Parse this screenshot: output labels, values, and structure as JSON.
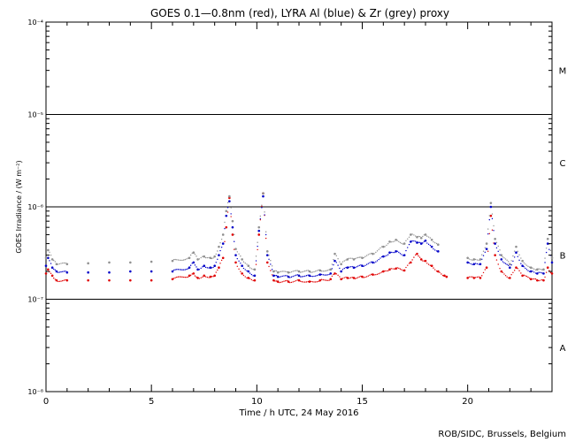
{
  "chart_data": {
    "type": "scatter",
    "title": "GOES 0.1—0.8nm (red), LYRA Al (blue) & Zr (grey) proxy",
    "xlabel": "Time / h UTC, 24 May 2016",
    "ylabel": "GOES Irradiance / (W m⁻²)",
    "xlim": [
      0,
      24
    ],
    "ylim": [
      1e-08,
      0.0001
    ],
    "yscale": "log",
    "x_ticks": [
      0,
      5,
      10,
      15,
      20
    ],
    "y_tick_labels": [
      {
        "value": 1e-08,
        "label": "10⁻⁸"
      },
      {
        "value": 1e-07,
        "label": "10⁻⁷"
      },
      {
        "value": 1e-06,
        "label": "10⁻⁶"
      },
      {
        "value": 1e-05,
        "label": "10⁻⁵"
      },
      {
        "value": 0.0001,
        "label": "10⁻⁴"
      }
    ],
    "flare_classes": [
      {
        "label": "A",
        "value": 3e-08
      },
      {
        "label": "B",
        "value": 3e-07
      },
      {
        "label": "C",
        "value": 3e-06
      },
      {
        "label": "M",
        "value": 3e-05
      }
    ],
    "threshold_lines": [
      1e-07,
      1e-06,
      1e-05
    ],
    "credit": "ROB/SIDC, Brussels, Belgium",
    "series": [
      {
        "name": "GOES 0.1–0.8nm",
        "color": "#e00000",
        "x": [
          0.0,
          0.1,
          0.3,
          0.5,
          1.0,
          2.0,
          3.0,
          4.0,
          5.0,
          6.0,
          6.8,
          7.0,
          7.2,
          7.5,
          7.8,
          8.0,
          8.2,
          8.4,
          8.55,
          8.7,
          8.85,
          9.0,
          9.3,
          9.6,
          9.9,
          10.1,
          10.3,
          10.5,
          10.8,
          11.0,
          11.5,
          12.0,
          12.5,
          13.0,
          13.5,
          13.7,
          14.0,
          14.3,
          14.6,
          15.0,
          15.5,
          16.0,
          16.3,
          16.6,
          17.0,
          17.3,
          17.6,
          17.8,
          18.0,
          18.3,
          18.6,
          18.9,
          19.0,
          20.0,
          20.3,
          20.6,
          20.9,
          21.1,
          21.3,
          21.6,
          22.0,
          22.3,
          22.6,
          23.0,
          23.3,
          23.6,
          23.8,
          24.0
        ],
        "y": [
          1.9e-07,
          2.1e-07,
          1.8e-07,
          1.6e-07,
          1.6e-07,
          1.6e-07,
          1.6e-07,
          1.6e-07,
          1.6e-07,
          1.65e-07,
          1.8e-07,
          1.9e-07,
          1.7e-07,
          1.8e-07,
          1.75e-07,
          1.8e-07,
          2.2e-07,
          2.8e-07,
          6e-07,
          1.25e-06,
          5e-07,
          2.5e-07,
          1.9e-07,
          1.7e-07,
          1.6e-07,
          5e-07,
          1.4e-06,
          2.5e-07,
          1.6e-07,
          1.55e-07,
          1.55e-07,
          1.6e-07,
          1.55e-07,
          1.6e-07,
          1.65e-07,
          1.9e-07,
          1.65e-07,
          1.7e-07,
          1.7e-07,
          1.75e-07,
          1.85e-07,
          2e-07,
          2.1e-07,
          2.15e-07,
          2.05e-07,
          2.5e-07,
          3.1e-07,
          2.7e-07,
          2.6e-07,
          2.3e-07,
          2e-07,
          1.8e-07,
          1.75e-07,
          1.7e-07,
          1.7e-07,
          1.7e-07,
          2.2e-07,
          8e-07,
          3e-07,
          2e-07,
          1.7e-07,
          2.2e-07,
          1.8e-07,
          1.65e-07,
          1.6e-07,
          1.6e-07,
          2.2e-07,
          1.9e-07
        ]
      },
      {
        "name": "LYRA Al",
        "color": "#0000c8",
        "x": [
          0.0,
          0.1,
          0.3,
          0.5,
          1.0,
          2.0,
          3.0,
          4.0,
          5.0,
          6.0,
          6.8,
          7.0,
          7.2,
          7.5,
          7.8,
          8.0,
          8.2,
          8.4,
          8.55,
          8.7,
          8.85,
          9.0,
          9.3,
          9.6,
          9.9,
          10.1,
          10.3,
          10.5,
          10.8,
          11.0,
          11.5,
          12.0,
          12.5,
          13.0,
          13.5,
          13.7,
          14.0,
          14.3,
          14.6,
          15.0,
          15.5,
          16.0,
          16.3,
          16.6,
          17.0,
          17.3,
          17.6,
          17.8,
          18.0,
          18.3,
          18.6,
          20.0,
          20.3,
          20.6,
          20.9,
          21.1,
          21.3,
          21.6,
          22.0,
          22.3,
          22.6,
          23.0,
          23.3,
          23.6,
          23.8,
          24.0
        ],
        "y": [
          2.3e-07,
          2.8e-07,
          2.2e-07,
          2e-07,
          1.95e-07,
          1.95e-07,
          1.95e-07,
          2e-07,
          2e-07,
          2e-07,
          2.2e-07,
          2.5e-07,
          2.1e-07,
          2.3e-07,
          2.2e-07,
          2.3e-07,
          3e-07,
          4e-07,
          8e-07,
          1.15e-06,
          6e-07,
          3e-07,
          2.3e-07,
          2e-07,
          1.8e-07,
          5.5e-07,
          1.3e-06,
          3e-07,
          1.8e-07,
          1.75e-07,
          1.75e-07,
          1.8e-07,
          1.8e-07,
          1.85e-07,
          1.9e-07,
          2.6e-07,
          2e-07,
          2.2e-07,
          2.2e-07,
          2.3e-07,
          2.5e-07,
          2.9e-07,
          3.2e-07,
          3.3e-07,
          3e-07,
          4.2e-07,
          4.1e-07,
          4e-07,
          4.3e-07,
          3.7e-07,
          3.3e-07,
          2.5e-07,
          2.4e-07,
          2.4e-07,
          3.5e-07,
          1e-06,
          4e-07,
          2.7e-07,
          2.2e-07,
          3.2e-07,
          2.3e-07,
          2e-07,
          1.9e-07,
          1.9e-07,
          4e-07,
          2.5e-07
        ]
      },
      {
        "name": "LYRA Zr",
        "color": "#909090",
        "x": [
          0.0,
          0.1,
          0.3,
          0.5,
          1.0,
          2.0,
          3.0,
          4.0,
          5.0,
          6.0,
          6.8,
          7.0,
          7.2,
          7.5,
          7.8,
          8.0,
          8.2,
          8.4,
          8.55,
          8.7,
          8.85,
          9.0,
          9.3,
          9.6,
          9.9,
          10.1,
          10.3,
          10.5,
          10.8,
          11.0,
          11.5,
          12.0,
          12.5,
          13.0,
          13.5,
          13.7,
          14.0,
          14.3,
          14.6,
          15.0,
          15.5,
          16.0,
          16.3,
          16.6,
          17.0,
          17.3,
          17.6,
          17.8,
          18.0,
          18.3,
          18.6,
          20.0,
          20.3,
          20.6,
          20.9,
          21.1,
          21.3,
          21.6,
          22.0,
          22.3,
          22.6,
          23.0,
          23.3,
          23.6,
          23.8,
          24.0
        ],
        "y": [
          2.8e-07,
          3.4e-07,
          2.7e-07,
          2.4e-07,
          2.4e-07,
          2.45e-07,
          2.5e-07,
          2.5e-07,
          2.55e-07,
          2.6e-07,
          2.8e-07,
          3.2e-07,
          2.7e-07,
          2.9e-07,
          2.8e-07,
          2.9e-07,
          3.7e-07,
          5e-07,
          9e-07,
          1.3e-06,
          7e-07,
          3.5e-07,
          2.7e-07,
          2.3e-07,
          2.1e-07,
          6e-07,
          1.4e-06,
          3.3e-07,
          2e-07,
          1.95e-07,
          1.95e-07,
          2e-07,
          2e-07,
          2.05e-07,
          2.1e-07,
          3.1e-07,
          2.4e-07,
          2.7e-07,
          2.7e-07,
          2.8e-07,
          3.1e-07,
          3.7e-07,
          4.2e-07,
          4.4e-07,
          4e-07,
          5e-07,
          4.7e-07,
          4.6e-07,
          5e-07,
          4.4e-07,
          3.9e-07,
          2.8e-07,
          2.7e-07,
          2.7e-07,
          4e-07,
          1.1e-06,
          4.5e-07,
          3e-07,
          2.4e-07,
          3.7e-07,
          2.6e-07,
          2.2e-07,
          2.1e-07,
          2.1e-07,
          4.5e-07,
          2.8e-07
        ]
      }
    ]
  }
}
